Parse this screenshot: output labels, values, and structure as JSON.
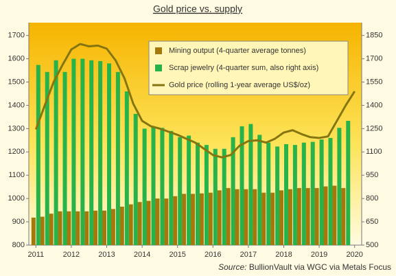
{
  "chart_data": {
    "type": "bar-line",
    "title": "Gold price vs. supply",
    "source_label": "Source:",
    "source_text": "BullionVault via WGC via Metals Focus",
    "x": [
      2011,
      2011.25,
      2011.5,
      2011.75,
      2012,
      2012.25,
      2012.5,
      2012.75,
      2013,
      2013.25,
      2013.5,
      2013.75,
      2014,
      2014.25,
      2014.5,
      2014.75,
      2015,
      2015.25,
      2015.5,
      2015.75,
      2016,
      2016.25,
      2016.5,
      2016.75,
      2017,
      2017.25,
      2017.5,
      2017.75,
      2018,
      2018.25,
      2018.5,
      2018.75,
      2019,
      2019.25,
      2019.5,
      2019.75
    ],
    "xlim": [
      2010.8,
      2020.2
    ],
    "xticks": [
      2011,
      2012,
      2013,
      2014,
      2015,
      2016,
      2017,
      2018,
      2019,
      2020
    ],
    "ylim": [
      800,
      1755
    ],
    "yticks": [
      800,
      900,
      1000,
      1100,
      1200,
      1300,
      1400,
      1500,
      1600,
      1700
    ],
    "y2lim": [
      500,
      1932.5
    ],
    "y2ticks": [
      500,
      650,
      800,
      950,
      1100,
      1250,
      1400,
      1550,
      1700,
      1850
    ],
    "series": [
      {
        "name": "Mining output (4-quarter average tonnes)",
        "kind": "bar",
        "color": "#a5780c",
        "values": [
          918,
          922,
          935,
          945,
          945,
          945,
          945,
          948,
          948,
          955,
          965,
          975,
          985,
          990,
          1000,
          1000,
          1010,
          1020,
          1020,
          1022,
          1025,
          1035,
          1045,
          1040,
          1040,
          1040,
          1025,
          1025,
          1035,
          1040,
          1045,
          1045,
          1045,
          1052,
          1055,
          1045
        ]
      },
      {
        "name": "Scrap jewelry (4-quarter sum, also right axis)",
        "kind": "bar",
        "axis": "y2",
        "color": "#27b24a",
        "values": [
          1660,
          1615,
          1690,
          1615,
          1700,
          1700,
          1690,
          1685,
          1670,
          1615,
          1490,
          1345,
          1250,
          1265,
          1255,
          1235,
          1195,
          1205,
          1160,
          1145,
          1120,
          1120,
          1195,
          1265,
          1280,
          1210,
          1160,
          1135,
          1150,
          1145,
          1160,
          1165,
          1180,
          1190,
          1255,
          1300
        ]
      },
      {
        "name": "Gold price (rolling 1-year average US$/oz)",
        "kind": "line",
        "axis": "y2",
        "color": "#857510",
        "x": [
          2011,
          2011.25,
          2011.5,
          2011.75,
          2012,
          2012.25,
          2012.5,
          2012.75,
          2013,
          2013.25,
          2013.5,
          2013.75,
          2014,
          2014.25,
          2014.5,
          2014.75,
          2015,
          2015.25,
          2015.5,
          2015.75,
          2016,
          2016.25,
          2016.5,
          2016.75,
          2017,
          2017.25,
          2017.5,
          2017.75,
          2018,
          2018.25,
          2018.5,
          2018.75,
          2019,
          2019.25,
          2019.5,
          2019.75,
          2020
        ],
        "values": [
          1245,
          1400,
          1550,
          1660,
          1760,
          1795,
          1780,
          1785,
          1765,
          1690,
          1575,
          1410,
          1300,
          1265,
          1250,
          1230,
          1210,
          1185,
          1160,
          1120,
          1080,
          1065,
          1080,
          1140,
          1170,
          1175,
          1160,
          1185,
          1225,
          1240,
          1215,
          1195,
          1190,
          1200,
          1300,
          1400,
          1490
        ]
      }
    ]
  }
}
